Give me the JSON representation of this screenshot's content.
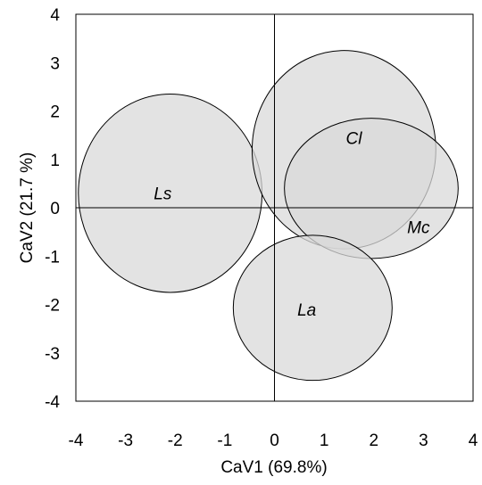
{
  "chart_data": {
    "type": "scatter",
    "xlabel": "CaV1 (69.8%)",
    "ylabel": "CaV2 (21.7 %)",
    "xlim": [
      -4,
      4
    ],
    "ylim": [
      -4,
      4
    ],
    "x_ticks": [
      "-4",
      "-3",
      "-2",
      "-1",
      "0",
      "1",
      "2",
      "3",
      "4"
    ],
    "y_ticks": [
      "4",
      "3",
      "2",
      "1",
      "0",
      "-1",
      "-2",
      "-3",
      "-4"
    ],
    "reference_lines": {
      "x0": true,
      "y0": true
    },
    "ellipse_fill": "#d9d9d9",
    "ellipse_stroke": "#000000",
    "groups": [
      {
        "label": "Ls",
        "cx": -2.1,
        "cy": 0.3,
        "rx": 1.85,
        "ry": 2.05,
        "label_x": -2.25,
        "label_y": 0.3
      },
      {
        "label": "Cl",
        "cx": 1.4,
        "cy": 1.2,
        "rx": 1.85,
        "ry": 2.05,
        "label_x": 1.6,
        "label_y": 1.45
      },
      {
        "label": "Mc",
        "cx": 1.95,
        "cy": 0.4,
        "rx": 1.75,
        "ry": 1.45,
        "label_x": 2.9,
        "label_y": -0.4
      },
      {
        "label": "La",
        "cx": 0.77,
        "cy": -2.07,
        "rx": 1.6,
        "ry": 1.5,
        "label_x": 0.65,
        "label_y": -2.1
      }
    ]
  }
}
